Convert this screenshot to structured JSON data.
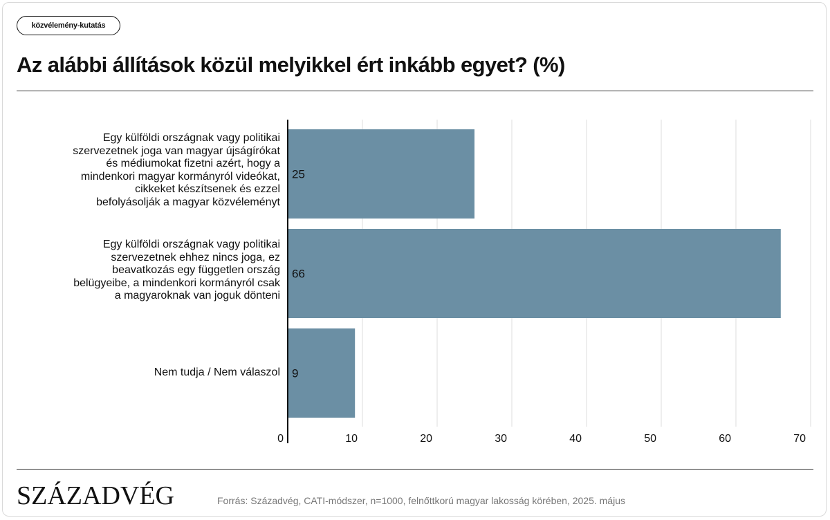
{
  "tag": "közvélemény-kutatás",
  "title": "Az alábbi állítások közül melyikkel ért inkább egyet? (%)",
  "logo": "SZÁZADVÉG",
  "source": "Forrás: Századvég, CATI-módszer, n=1000, felnőttkorú magyar lakosság körében, 2025. május",
  "colors": {
    "bar": "#6b8fa4",
    "grid": "#dcdcdc",
    "axis": "#111111"
  },
  "chart_data": {
    "type": "bar",
    "orientation": "horizontal",
    "categories": [
      "Egy külföldi országnak vagy politikai szervezetnek joga van magyar újságírókat és médiumokat fizetni azért, hogy a mindenkori magyar kormányról videókat, cikkeket készítsenek és ezzel befolyásolják a magyar közvéleményt",
      "Egy külföldi országnak vagy politikai szervezetnek ehhez nincs joga, ez beavatkozás egy független ország belügyeibe, a mindenkori kormányról csak a magyaroknak van joguk dönteni",
      "Nem tudja / Nem válaszol"
    ],
    "values": [
      25,
      66,
      9
    ],
    "data_labels": [
      "25",
      "66",
      "9"
    ],
    "xlim": [
      0,
      70
    ],
    "x_ticks": [
      0,
      10,
      20,
      30,
      40,
      50,
      60,
      70
    ],
    "tick_labels": [
      "0",
      "10",
      "20",
      "30",
      "40",
      "50",
      "60",
      "70"
    ],
    "grid": true,
    "legend": "none"
  }
}
